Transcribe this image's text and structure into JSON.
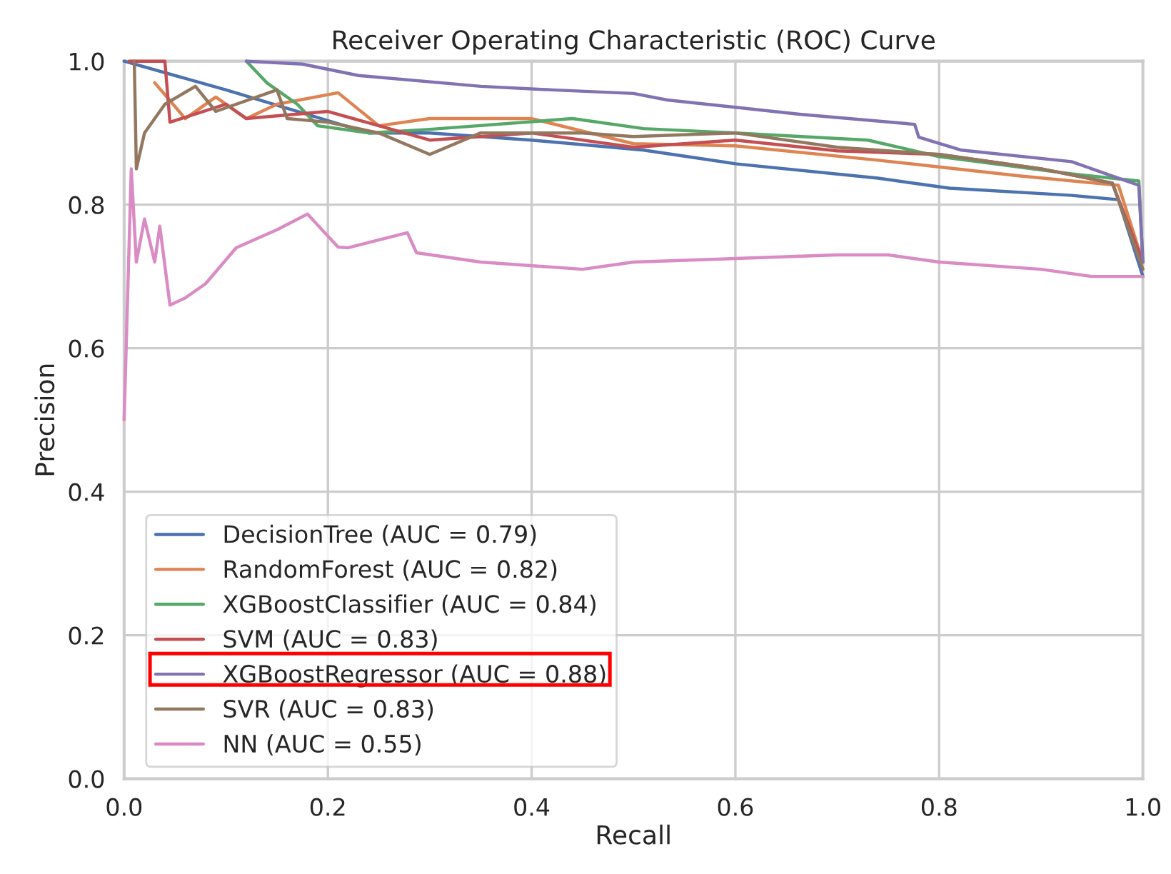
{
  "chart_data": {
    "type": "line",
    "title": "Receiver Operating Characteristic (ROC) Curve",
    "xlabel": "Recall",
    "ylabel": "Precision",
    "xlim": [
      0,
      1
    ],
    "ylim": [
      0,
      1
    ],
    "xticks": [
      {
        "value": 0,
        "label": "0.0"
      },
      0.2,
      0.4,
      0.6,
      0.8,
      {
        "value": 1,
        "label": "1.0"
      }
    ],
    "yticks": [
      {
        "value": 0,
        "label": "0.0"
      },
      0.2,
      0.4,
      0.6,
      0.8,
      {
        "value": 1,
        "label": "1.0"
      }
    ],
    "grid": true,
    "legend": "bottom left",
    "line_style": "solid",
    "marker": "none",
    "series": [
      {
        "name": "DecisionTree (AUC = 0.79)",
        "color": "#4c72b0",
        "x": [
          0,
          0.1,
          0.24,
          0.3,
          0.4,
          0.51,
          0.6,
          0.74,
          0.81,
          0.93,
          0.976,
          1.0
        ],
        "values": [
          1.0,
          0.96,
          0.9,
          0.9,
          0.89,
          0.876,
          0.857,
          0.837,
          0.823,
          0.813,
          0.807,
          0.7
        ]
      },
      {
        "name": "RandomForest (AUC = 0.82)",
        "color": "#dd8452",
        "x": [
          0.03,
          0.06,
          0.09,
          0.12,
          0.15,
          0.21,
          0.25,
          0.3,
          0.4,
          0.5,
          0.6,
          0.74,
          0.88,
          0.976,
          1.0
        ],
        "values": [
          0.97,
          0.92,
          0.95,
          0.92,
          0.94,
          0.956,
          0.91,
          0.92,
          0.92,
          0.885,
          0.882,
          0.862,
          0.84,
          0.827,
          0.72
        ]
      },
      {
        "name": "XGBoostClassifier (AUC = 0.84)",
        "color": "#55a868",
        "x": [
          0.12,
          0.14,
          0.17,
          0.19,
          0.24,
          0.3,
          0.44,
          0.51,
          0.6,
          0.73,
          0.8,
          0.93,
          0.996,
          1.0
        ],
        "values": [
          1.0,
          0.97,
          0.94,
          0.91,
          0.9,
          0.905,
          0.92,
          0.906,
          0.9,
          0.89,
          0.867,
          0.843,
          0.833,
          0.72
        ]
      },
      {
        "name": "SVM (AUC = 0.83)",
        "color": "#c44e52",
        "x": [
          0.005,
          0.04,
          0.045,
          0.1,
          0.12,
          0.2,
          0.25,
          0.3,
          0.4,
          0.5,
          0.6,
          0.7,
          0.8,
          0.9,
          0.97,
          1.0
        ],
        "values": [
          1.0,
          1.0,
          0.915,
          0.94,
          0.92,
          0.93,
          0.91,
          0.89,
          0.9,
          0.88,
          0.89,
          0.875,
          0.87,
          0.85,
          0.83,
          0.72
        ]
      },
      {
        "name": "XGBoostRegressor (AUC = 0.88)",
        "color": "#8172b3",
        "x": [
          0.12,
          0.175,
          0.23,
          0.35,
          0.42,
          0.5,
          0.533,
          0.663,
          0.776,
          0.78,
          0.822,
          0.93,
          0.996,
          1.0
        ],
        "values": [
          1.0,
          0.996,
          0.98,
          0.965,
          0.96,
          0.955,
          0.946,
          0.926,
          0.912,
          0.894,
          0.876,
          0.86,
          0.827,
          0.72
        ]
      },
      {
        "name": "SVR (AUC = 0.83)",
        "color": "#937860",
        "x": [
          0.01,
          0.012,
          0.02,
          0.04,
          0.07,
          0.09,
          0.15,
          0.16,
          0.2,
          0.25,
          0.3,
          0.35,
          0.45,
          0.5,
          0.6,
          0.7,
          0.8,
          0.9,
          0.97,
          1.0
        ],
        "values": [
          1.0,
          0.85,
          0.9,
          0.94,
          0.965,
          0.93,
          0.96,
          0.92,
          0.915,
          0.9,
          0.87,
          0.9,
          0.9,
          0.895,
          0.9,
          0.88,
          0.87,
          0.85,
          0.83,
          0.71
        ]
      },
      {
        "name": "NN (AUC = 0.55)",
        "color": "#da8bc3",
        "x": [
          0,
          0.007,
          0.012,
          0.02,
          0.03,
          0.035,
          0.045,
          0.06,
          0.08,
          0.11,
          0.15,
          0.18,
          0.21,
          0.22,
          0.278,
          0.287,
          0.35,
          0.45,
          0.5,
          0.6,
          0.7,
          0.75,
          0.8,
          0.9,
          0.95,
          1.0
        ],
        "values": [
          0.5,
          0.85,
          0.72,
          0.78,
          0.72,
          0.77,
          0.66,
          0.67,
          0.69,
          0.74,
          0.765,
          0.787,
          0.741,
          0.74,
          0.761,
          0.733,
          0.72,
          0.71,
          0.72,
          0.725,
          0.73,
          0.73,
          0.72,
          0.71,
          0.7,
          0.7
        ]
      }
    ]
  }
}
